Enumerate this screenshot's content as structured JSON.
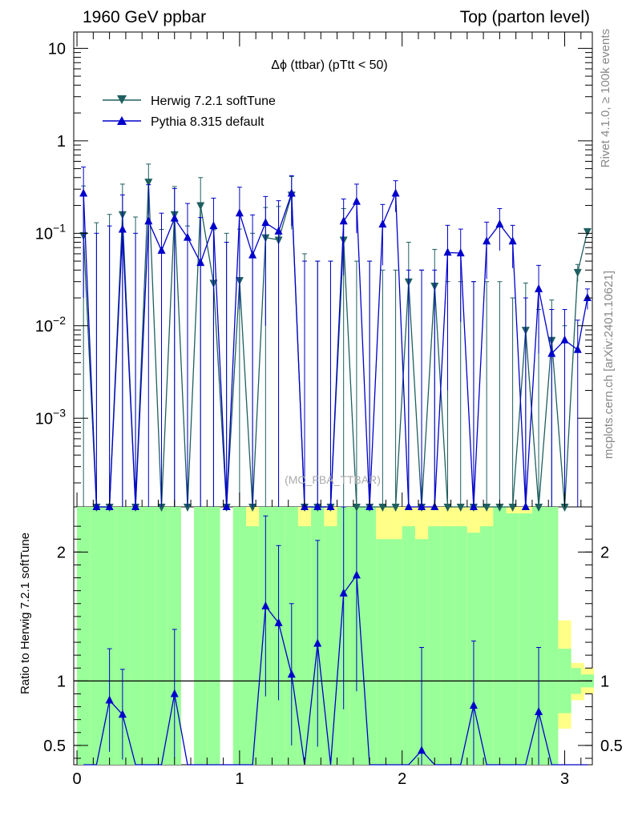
{
  "header": {
    "left": "1960 GeV ppbar",
    "right": "Top (parton level)"
  },
  "side_labels": {
    "rivet": "Rivet 4.1.0, ≥ 100k events",
    "mcplots": "mcplots.cern.ch [arXiv:2401.10621]"
  },
  "watermark": "(MC_FBA_TTBAR)",
  "colors": {
    "herwig": "#1f5f5f",
    "pythia": "#0000cc",
    "band_green": "#99ff99",
    "band_yellow": "#ffff88"
  },
  "legend": [
    {
      "label": "Herwig 7.2.1 softTune",
      "series": "herwig",
      "marker": "triangle-down"
    },
    {
      "label": "Pythia 8.315 default",
      "series": "pythia",
      "marker": "triangle-up"
    }
  ],
  "chart_data": [
    {
      "type": "line",
      "title": "Δϕ (ttbar) (pTtt < 50)",
      "xlabel": "",
      "ylabel": "",
      "xlim": [
        -0.02,
        3.17
      ],
      "yscale": "log",
      "ylim": [
        0.00011,
        15
      ],
      "yticks": [
        {
          "value": 0.001,
          "base": "10",
          "exp": "−3"
        },
        {
          "value": 0.01,
          "base": "10",
          "exp": "−2"
        },
        {
          "value": 0.1,
          "base": "10",
          "exp": "−1"
        },
        {
          "value": 1,
          "base": "1",
          "exp": ""
        },
        {
          "value": 10,
          "base": "10",
          "exp": ""
        }
      ],
      "x": [
        0.04,
        0.12,
        0.2,
        0.28,
        0.36,
        0.44,
        0.52,
        0.6,
        0.68,
        0.76,
        0.84,
        0.92,
        1.0,
        1.08,
        1.16,
        1.24,
        1.32,
        1.4,
        1.48,
        1.56,
        1.64,
        1.72,
        1.8,
        1.88,
        1.96,
        2.04,
        2.12,
        2.2,
        2.28,
        2.36,
        2.44,
        2.52,
        2.6,
        2.68,
        2.76,
        2.84,
        2.92,
        3.0,
        3.08,
        3.14
      ],
      "series": [
        {
          "name": "Herwig 7.2.1 softTune",
          "key": "herwig",
          "values": [
            0.095,
            0,
            0,
            0.16,
            0,
            0.36,
            0,
            0.16,
            0,
            0.2,
            0.029,
            0,
            0.031,
            0,
            0.09,
            0.085,
            0.26,
            0,
            0,
            0,
            0.085,
            0,
            0,
            0,
            0,
            0.03,
            0,
            0.027,
            0,
            0,
            0,
            0,
            0,
            0,
            0.009,
            0,
            0.007,
            0,
            0.038,
            0.105
          ],
          "errors": [
            0.23,
            0.13,
            0.16,
            0.18,
            0.15,
            0.2,
            0.11,
            0.16,
            0.12,
            0.2,
            0.08,
            0.1,
            0.08,
            0.1,
            0.1,
            0.11,
            0.15,
            0.06,
            0.05,
            0.05,
            0.1,
            0.05,
            0.05,
            0.04,
            0.04,
            0.05,
            0.04,
            0.04,
            0.03,
            0.03,
            0.03,
            0.03,
            0.03,
            0.02,
            0.02,
            0.015,
            0.012,
            0.01,
            0.008,
            0.005
          ]
        },
        {
          "name": "Pythia 8.315 default",
          "key": "pythia",
          "values": [
            0.27,
            0,
            0,
            0.11,
            0,
            0.135,
            0.065,
            0.145,
            0.09,
            0.048,
            0.12,
            0,
            0.165,
            0.058,
            0.13,
            0.105,
            0.27,
            0,
            0,
            0,
            0.135,
            0.22,
            0,
            0.125,
            0.27,
            0,
            0,
            0,
            0.062,
            0.061,
            0,
            0.082,
            0.125,
            0.082,
            0,
            0.025,
            0.005,
            0.007,
            0.0055,
            0.02
          ],
          "errors": [
            0.25,
            0.1,
            0.12,
            0.15,
            0.1,
            0.2,
            0.1,
            0.16,
            0.12,
            0.1,
            0.12,
            0.08,
            0.15,
            0.1,
            0.12,
            0.12,
            0.15,
            0.05,
            0.05,
            0.05,
            0.1,
            0.12,
            0.05,
            0.08,
            0.1,
            0.04,
            0.04,
            0.04,
            0.06,
            0.05,
            0.03,
            0.05,
            0.06,
            0.04,
            0.02,
            0.02,
            0.01,
            0.008,
            0.006,
            0.005
          ]
        }
      ]
    },
    {
      "type": "line",
      "title": "",
      "xlabel": "",
      "ylabel": "Ratio to Herwig 7.2.1 softTune",
      "xlim": [
        -0.02,
        3.17
      ],
      "ylim": [
        0.35,
        2.35
      ],
      "yticks": [
        0.5,
        1,
        2
      ],
      "xticks": [
        0,
        1,
        2,
        3
      ],
      "reference_line": 1,
      "band_x": [
        0.04,
        0.12,
        0.2,
        0.28,
        0.36,
        0.44,
        0.52,
        0.6,
        0.68,
        0.76,
        0.84,
        0.92,
        1.0,
        1.08,
        1.16,
        1.24,
        1.32,
        1.4,
        1.48,
        1.56,
        1.64,
        1.72,
        1.8,
        1.88,
        1.96,
        2.04,
        2.12,
        2.2,
        2.28,
        2.36,
        2.44,
        2.52,
        2.6,
        2.68,
        2.76,
        2.84,
        2.92,
        3.0,
        3.08,
        3.14
      ],
      "band_green": [
        [
          0.35,
          2.35
        ],
        [
          0.35,
          2.35
        ],
        [
          0.35,
          2.35
        ],
        [
          0.35,
          2.35
        ],
        [
          0.35,
          2.35
        ],
        [
          0.35,
          2.35
        ],
        [
          0.35,
          2.35
        ],
        [
          0.35,
          2.35
        ],
        [
          0,
          0
        ],
        [
          0.35,
          2.35
        ],
        [
          0.35,
          2.35
        ],
        [
          0,
          0
        ],
        [
          0.35,
          2.35
        ],
        [
          0.35,
          2.2
        ],
        [
          0.35,
          2.35
        ],
        [
          0.35,
          2.35
        ],
        [
          0.35,
          2.35
        ],
        [
          0.35,
          2.2
        ],
        [
          0.35,
          2.35
        ],
        [
          0.35,
          2.2
        ],
        [
          0.35,
          2.35
        ],
        [
          0.35,
          2.35
        ],
        [
          0.35,
          2.35
        ],
        [
          0.35,
          2.1
        ],
        [
          0.35,
          2.1
        ],
        [
          0.35,
          2.2
        ],
        [
          0.35,
          2.1
        ],
        [
          0.35,
          2.2
        ],
        [
          0.35,
          2.2
        ],
        [
          0.35,
          2.2
        ],
        [
          0.35,
          2.15
        ],
        [
          0.35,
          2.2
        ],
        [
          0.35,
          2.35
        ],
        [
          0.35,
          2.3
        ],
        [
          0.35,
          2.3
        ],
        [
          0.35,
          2.35
        ],
        [
          0.35,
          2.35
        ],
        [
          0.75,
          1.25
        ],
        [
          0.9,
          1.1
        ],
        [
          0.95,
          1.05
        ]
      ],
      "band_yellow": [
        [
          0.35,
          2.35
        ],
        [
          0.35,
          2.35
        ],
        [
          0.35,
          2.35
        ],
        [
          0.35,
          2.35
        ],
        [
          0.35,
          2.35
        ],
        [
          0.35,
          2.35
        ],
        [
          0.35,
          2.35
        ],
        [
          0.35,
          2.35
        ],
        [
          0,
          0
        ],
        [
          0.35,
          2.35
        ],
        [
          0.35,
          2.35
        ],
        [
          0,
          0
        ],
        [
          0.35,
          2.35
        ],
        [
          0.35,
          2.35
        ],
        [
          0.35,
          2.35
        ],
        [
          0.35,
          2.35
        ],
        [
          0.35,
          2.35
        ],
        [
          0.35,
          2.35
        ],
        [
          0.35,
          2.35
        ],
        [
          0.35,
          2.35
        ],
        [
          0.35,
          2.35
        ],
        [
          0.35,
          2.35
        ],
        [
          0.35,
          2.35
        ],
        [
          0.35,
          2.35
        ],
        [
          0.35,
          2.35
        ],
        [
          0.35,
          2.35
        ],
        [
          0.35,
          2.35
        ],
        [
          0.35,
          2.35
        ],
        [
          0.35,
          2.35
        ],
        [
          0.35,
          2.35
        ],
        [
          0.35,
          2.35
        ],
        [
          0.35,
          2.35
        ],
        [
          0.35,
          2.35
        ],
        [
          0.35,
          2.35
        ],
        [
          0.35,
          2.35
        ],
        [
          0.35,
          2.35
        ],
        [
          0.35,
          2.35
        ],
        [
          0.63,
          1.47
        ],
        [
          0.85,
          1.14
        ],
        [
          0.9,
          1.1
        ]
      ],
      "ratio_values": [
        null,
        null,
        0.85,
        0.74,
        null,
        null,
        null,
        0.9,
        null,
        null,
        null,
        null,
        null,
        null,
        1.58,
        1.45,
        1.05,
        null,
        1.29,
        null,
        1.68,
        1.82,
        null,
        null,
        null,
        null,
        0.46,
        null,
        null,
        null,
        0.81,
        null,
        null,
        null,
        null,
        0.76,
        null,
        null,
        null,
        null
      ],
      "ratio_errors": [
        null,
        null,
        0.4,
        0.35,
        null,
        null,
        null,
        0.5,
        null,
        null,
        null,
        null,
        null,
        null,
        0.7,
        0.6,
        0.55,
        null,
        0.8,
        null,
        0.9,
        0.9,
        null,
        null,
        null,
        null,
        0.8,
        null,
        null,
        null,
        0.5,
        null,
        null,
        null,
        null,
        0.5,
        null,
        null,
        null,
        null
      ]
    }
  ]
}
